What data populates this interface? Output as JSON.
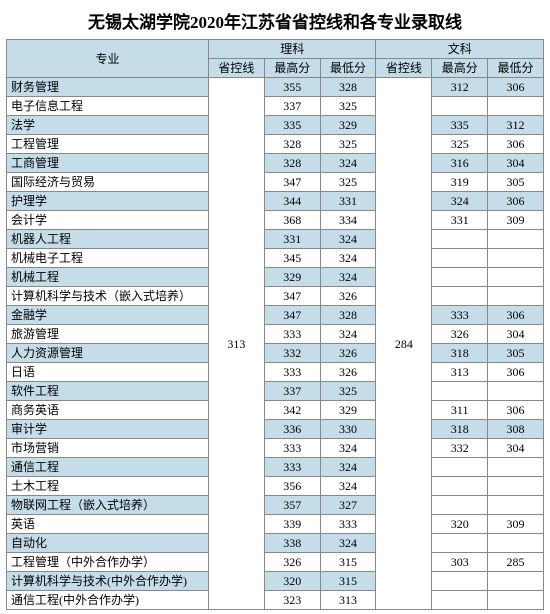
{
  "title": "无锡太湖学院2020年江苏省省控线和各专业录取线",
  "headers": {
    "major": "专业",
    "science": "理科",
    "arts": "文科",
    "ctrl": "省控线",
    "max": "最高分",
    "min": "最低分"
  },
  "science_ctrl": "313",
  "arts_ctrl": "284",
  "rows": [
    {
      "major": "财务管理",
      "s_max": "355",
      "s_min": "328",
      "a_max": "312",
      "a_min": "306"
    },
    {
      "major": "电子信息工程",
      "s_max": "337",
      "s_min": "325",
      "a_max": "",
      "a_min": ""
    },
    {
      "major": "法学",
      "s_max": "335",
      "s_min": "329",
      "a_max": "335",
      "a_min": "312"
    },
    {
      "major": "工程管理",
      "s_max": "328",
      "s_min": "325",
      "a_max": "325",
      "a_min": "306"
    },
    {
      "major": "工商管理",
      "s_max": "328",
      "s_min": "324",
      "a_max": "316",
      "a_min": "304"
    },
    {
      "major": "国际经济与贸易",
      "s_max": "347",
      "s_min": "325",
      "a_max": "319",
      "a_min": "305"
    },
    {
      "major": "护理学",
      "s_max": "344",
      "s_min": "331",
      "a_max": "324",
      "a_min": "306"
    },
    {
      "major": "会计学",
      "s_max": "368",
      "s_min": "334",
      "a_max": "331",
      "a_min": "309"
    },
    {
      "major": "机器人工程",
      "s_max": "331",
      "s_min": "324",
      "a_max": "",
      "a_min": ""
    },
    {
      "major": "机械电子工程",
      "s_max": "345",
      "s_min": "324",
      "a_max": "",
      "a_min": ""
    },
    {
      "major": "机械工程",
      "s_max": "329",
      "s_min": "324",
      "a_max": "",
      "a_min": ""
    },
    {
      "major": "计算机科学与技术（嵌入式培养）",
      "s_max": "347",
      "s_min": "326",
      "a_max": "",
      "a_min": ""
    },
    {
      "major": "金融学",
      "s_max": "347",
      "s_min": "328",
      "a_max": "333",
      "a_min": "306"
    },
    {
      "major": "旅游管理",
      "s_max": "333",
      "s_min": "324",
      "a_max": "326",
      "a_min": "304"
    },
    {
      "major": "人力资源管理",
      "s_max": "332",
      "s_min": "326",
      "a_max": "318",
      "a_min": "305"
    },
    {
      "major": "日语",
      "s_max": "333",
      "s_min": "326",
      "a_max": "313",
      "a_min": "306"
    },
    {
      "major": "软件工程",
      "s_max": "337",
      "s_min": "325",
      "a_max": "",
      "a_min": ""
    },
    {
      "major": "商务英语",
      "s_max": "342",
      "s_min": "329",
      "a_max": "311",
      "a_min": "306"
    },
    {
      "major": "审计学",
      "s_max": "336",
      "s_min": "330",
      "a_max": "318",
      "a_min": "308"
    },
    {
      "major": "市场营销",
      "s_max": "333",
      "s_min": "324",
      "a_max": "332",
      "a_min": "304"
    },
    {
      "major": "通信工程",
      "s_max": "333",
      "s_min": "324",
      "a_max": "",
      "a_min": ""
    },
    {
      "major": "土木工程",
      "s_max": "356",
      "s_min": "324",
      "a_max": "",
      "a_min": ""
    },
    {
      "major": "物联网工程（嵌入式培养）",
      "s_max": "357",
      "s_min": "327",
      "a_max": "",
      "a_min": ""
    },
    {
      "major": "英语",
      "s_max": "339",
      "s_min": "333",
      "a_max": "320",
      "a_min": "309"
    },
    {
      "major": "自动化",
      "s_max": "338",
      "s_min": "324",
      "a_max": "",
      "a_min": ""
    },
    {
      "major": "工程管理（中外合作办学）",
      "s_max": "326",
      "s_min": "315",
      "a_max": "303",
      "a_min": "285"
    },
    {
      "major": "计算机科学与技术(中外合作办学)",
      "s_max": "320",
      "s_min": "315",
      "a_max": "",
      "a_min": ""
    },
    {
      "major": "通信工程(中外合作办学)",
      "s_max": "323",
      "s_min": "313",
      "a_max": "",
      "a_min": ""
    }
  ],
  "colors": {
    "header_bg": "#c5dde8",
    "border": "#888888",
    "bg": "#ffffff"
  }
}
